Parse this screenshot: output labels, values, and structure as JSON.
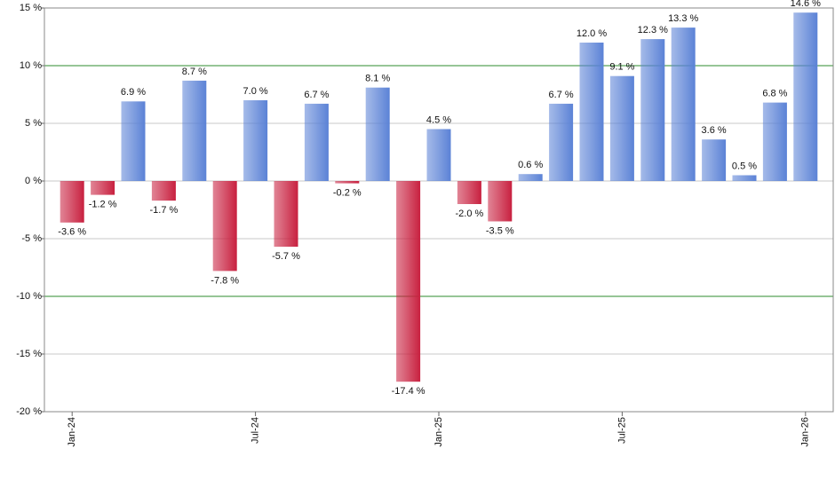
{
  "chart_data": {
    "type": "bar",
    "categories": [
      "Jan-24",
      null,
      null,
      null,
      null,
      null,
      "Jul-24",
      null,
      null,
      null,
      null,
      null,
      "Jan-25",
      null,
      null,
      null,
      null,
      null,
      "Jul-25",
      null,
      null,
      null,
      null,
      null,
      "Jan-26"
    ],
    "values": [
      -3.6,
      -1.2,
      6.9,
      -1.7,
      8.7,
      -7.8,
      7.0,
      -5.7,
      6.7,
      -0.2,
      8.1,
      -17.4,
      4.5,
      -2.0,
      -3.5,
      0.6,
      6.7,
      12.0,
      9.1,
      12.3,
      13.3,
      3.6,
      0.5,
      6.8,
      14.6
    ],
    "value_labels": [
      "-3.6 %",
      "-1.2 %",
      "6.9 %",
      "-1.7 %",
      "8.7 %",
      "-7.8 %",
      "7.0 %",
      "-5.7 %",
      "6.7 %",
      "-0.2 %",
      "8.1 %",
      "-17.4 %",
      "4.5 %",
      "-2.0 %",
      "-3.5 %",
      "0.6 %",
      "6.7 %",
      "12.0 %",
      "9.1 %",
      "12.3 %",
      "13.3 %",
      "3.6 %",
      "0.5 %",
      "6.8 %",
      "14.6 %"
    ],
    "positive_color": "#5b82d6",
    "negative_color": "#c8203f",
    "ylim": [
      -20,
      15
    ],
    "yticks": [
      {
        "value": -20,
        "label": "-20 %"
      },
      {
        "value": -15,
        "label": "-15 %"
      },
      {
        "value": -10,
        "label": "-10 %"
      },
      {
        "value": -5,
        "label": "-5 %"
      },
      {
        "value": 0,
        "label": "0 %"
      },
      {
        "value": 5,
        "label": "5 %"
      },
      {
        "value": 10,
        "label": "10 %"
      },
      {
        "value": 15,
        "label": "15 %"
      }
    ],
    "grid": true,
    "reference_lines": [
      10,
      -10
    ],
    "reference_color": "#2e8b2e"
  }
}
